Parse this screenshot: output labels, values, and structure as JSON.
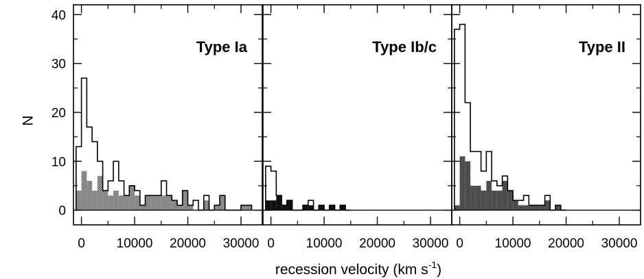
{
  "chart_data": {
    "type": "histogram",
    "ylabel": "N",
    "xlabel_main": "recession velocity (km s",
    "xlabel_exp": "-1",
    "xlabel_close": ")",
    "ylim": [
      -3,
      42
    ],
    "xlim": [
      -1500,
      34000
    ],
    "y_ticks": [
      "0",
      "10",
      "20",
      "30",
      "40"
    ],
    "x_ticks": [
      "0",
      "10000",
      "20000",
      "30000"
    ],
    "bin_width": 1000,
    "hatched_color": "#8a8a8a",
    "solid_color": "#111111",
    "panels": [
      {
        "title": "Type Ia",
        "fill_style": "hatched",
        "bins_start": [
          -1000,
          0,
          1000,
          2000,
          3000,
          4000,
          5000,
          6000,
          7000,
          8000,
          9000,
          10000,
          11000,
          12000,
          13000,
          14000,
          15000,
          16000,
          17000,
          18000,
          19000,
          20000,
          21000,
          22000,
          23000,
          24000,
          25000,
          26000,
          27000,
          28000,
          29000,
          30000,
          31000
        ],
        "total": [
          13,
          27,
          17,
          14,
          10,
          4,
          6,
          10,
          6,
          3,
          5,
          4,
          1,
          3,
          3,
          3,
          6,
          3,
          2,
          1,
          4,
          1,
          2,
          0,
          3,
          0,
          1,
          3,
          0,
          0,
          0,
          1,
          1
        ],
        "filled": [
          4,
          8,
          6,
          4,
          7,
          4,
          3,
          4,
          3,
          3,
          5,
          3,
          1,
          3,
          3,
          3,
          3,
          3,
          2,
          1,
          4,
          1,
          0,
          0,
          2,
          0,
          1,
          3,
          0,
          0,
          0,
          1,
          1
        ]
      },
      {
        "title": "Type Ib/c",
        "fill_style": "solid",
        "bins_start": [
          -1000,
          0,
          1000,
          2000,
          3000,
          4000,
          5000,
          6000,
          7000,
          8000,
          9000,
          10000,
          11000,
          12000,
          13000,
          14000
        ],
        "total": [
          9,
          8,
          3,
          1,
          2,
          0,
          0,
          1,
          2,
          0,
          1,
          0,
          1,
          0,
          1,
          0
        ],
        "filled": [
          2,
          2,
          3,
          1,
          2,
          0,
          0,
          1,
          1,
          0,
          1,
          0,
          1,
          0,
          1,
          0
        ]
      },
      {
        "title": "Type II",
        "fill_style": "hatched-dark",
        "bins_start": [
          -1000,
          0,
          1000,
          2000,
          3000,
          4000,
          5000,
          6000,
          7000,
          8000,
          9000,
          10000,
          11000,
          12000,
          13000,
          14000,
          15000,
          16000,
          17000,
          18000,
          19000
        ],
        "total": [
          37,
          38,
          22,
          12,
          12,
          8,
          12,
          6,
          5,
          7,
          4,
          2,
          2,
          3,
          1,
          1,
          1,
          3,
          0,
          1,
          0
        ],
        "filled": [
          1,
          11,
          10,
          5,
          5,
          4,
          6,
          4,
          4,
          6,
          4,
          2,
          1,
          1,
          1,
          1,
          1,
          2,
          0,
          1,
          0
        ]
      }
    ]
  }
}
